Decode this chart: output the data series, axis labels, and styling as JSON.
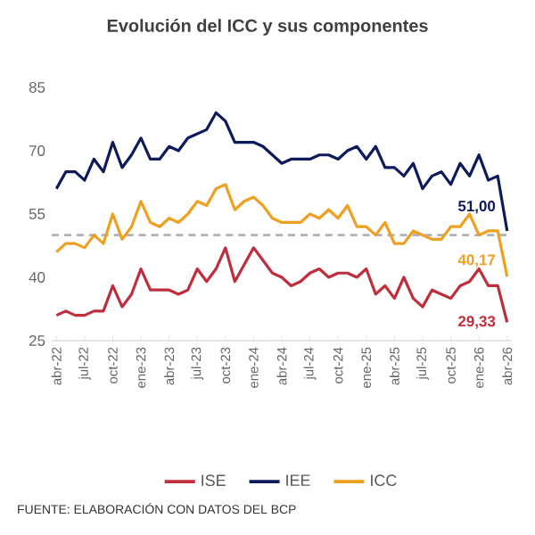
{
  "chart_data": {
    "type": "line",
    "title": "Evolución del ICC y sus componentes",
    "categories": [
      "abr-22",
      null,
      null,
      "jul-22",
      null,
      null,
      "oct-22",
      null,
      null,
      "ene-23",
      null,
      null,
      "abr-23",
      null,
      null,
      "jul-23",
      null,
      null,
      "oct-23",
      null,
      null,
      "ene-24",
      null,
      null,
      "abr-24",
      null,
      null,
      "jul-24",
      null,
      null,
      "oct-24",
      null,
      null,
      "ene-25",
      null,
      null,
      "abr-25",
      null,
      null,
      "jul-25",
      null,
      null,
      "oct-25",
      null,
      null,
      "ene-26",
      null,
      null,
      "abr-26"
    ],
    "series": [
      {
        "name": "ISE",
        "color": "#be2e3c",
        "values": [
          31,
          32,
          31,
          31,
          32,
          32,
          38,
          33,
          36,
          42,
          37,
          37,
          37,
          36,
          37,
          42,
          39,
          42,
          47,
          39,
          43,
          47,
          44,
          41,
          40,
          38,
          39,
          41,
          42,
          40,
          41,
          41,
          40,
          42,
          36,
          38,
          35,
          40,
          35,
          33,
          37,
          36,
          35,
          38,
          39,
          42,
          38,
          38,
          29.33
        ],
        "value_labels": [
          null,
          null,
          null,
          null,
          null,
          null,
          null,
          null,
          null,
          null,
          null,
          null,
          null,
          null,
          null,
          null,
          null,
          null,
          null,
          null,
          null,
          null,
          null,
          null,
          null,
          null,
          null,
          null,
          null,
          null,
          null,
          null,
          null,
          null,
          null,
          null,
          null,
          null,
          null,
          null,
          null,
          null,
          null,
          null,
          null,
          null,
          null,
          null,
          "29,33"
        ]
      },
      {
        "name": "IEE",
        "color": "#0d1a5c",
        "values": [
          61,
          65,
          65,
          63,
          68,
          65,
          72,
          66,
          69,
          73,
          68,
          68,
          71,
          70,
          73,
          74,
          75,
          79,
          77,
          72,
          72,
          72,
          71,
          69,
          67,
          68,
          68,
          68,
          69,
          69,
          68,
          70,
          71,
          68,
          71,
          66,
          66,
          64,
          67,
          61,
          64,
          65,
          62,
          67,
          64,
          69,
          63,
          64,
          51
        ],
        "value_labels": [
          null,
          null,
          null,
          null,
          null,
          null,
          null,
          null,
          null,
          null,
          null,
          null,
          null,
          null,
          null,
          null,
          null,
          null,
          null,
          null,
          null,
          null,
          null,
          null,
          null,
          null,
          null,
          null,
          null,
          null,
          null,
          null,
          null,
          null,
          null,
          null,
          null,
          null,
          null,
          null,
          null,
          null,
          null,
          null,
          null,
          null,
          null,
          null,
          "51,00"
        ]
      },
      {
        "name": "ICC",
        "color": "#f0a020",
        "values": [
          46,
          48,
          48,
          47,
          50,
          48,
          55,
          49,
          52,
          58,
          53,
          52,
          54,
          53,
          55,
          58,
          57,
          61,
          62,
          56,
          58,
          59,
          57,
          54,
          53,
          53,
          53,
          55,
          54,
          56,
          54,
          57,
          52,
          52,
          50,
          53,
          48,
          48,
          51,
          50,
          49,
          49,
          52,
          52,
          55,
          50,
          51,
          51,
          40.17
        ],
        "value_labels": [
          null,
          null,
          null,
          null,
          null,
          null,
          null,
          null,
          null,
          null,
          null,
          null,
          null,
          null,
          null,
          null,
          null,
          null,
          null,
          null,
          null,
          null,
          null,
          null,
          null,
          null,
          null,
          null,
          null,
          null,
          null,
          null,
          null,
          null,
          null,
          null,
          null,
          null,
          null,
          null,
          null,
          null,
          null,
          null,
          null,
          null,
          null,
          null,
          "40,17"
        ]
      }
    ],
    "ylim": [
      25,
      85
    ],
    "yticks": [
      25,
      40,
      55,
      70,
      85
    ],
    "ref_lines": [
      {
        "axis": "y",
        "value": 50,
        "color": "#b0b0b8",
        "line_style": "dashed"
      }
    ],
    "legend": "bottom",
    "marker": "none",
    "line_style": "solid",
    "annotations": [
      "FUENTE: ELABORACIÓN CON DATOS DEL BCP"
    ]
  }
}
